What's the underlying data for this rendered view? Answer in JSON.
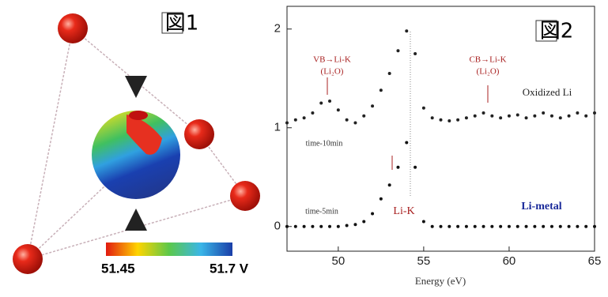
{
  "figure1": {
    "label": "図1",
    "colorbar_labels": [
      "51.45",
      "51.7 V"
    ]
  },
  "chart_data": {
    "type": "scatter",
    "label": "図2",
    "x_label": "Energy (eV)",
    "xlim": [
      47,
      65
    ],
    "xticks": [
      50,
      55,
      60,
      65
    ],
    "ylim": [
      -0.25,
      2.23
    ],
    "yticks": [
      0,
      1,
      2
    ],
    "annotations": [
      "VB→Li-K",
      "(Li₂O)",
      "CB→Li-K",
      "(Li₂O)",
      "Oxidized Li",
      "time-10min",
      "time-5min",
      "Li-K",
      "Li-metal"
    ],
    "x": [
      47,
      47.5,
      48,
      48.5,
      49,
      49.5,
      50,
      50.5,
      51,
      51.5,
      52,
      52.5,
      53,
      53.5,
      54,
      54.5,
      55,
      55.5,
      56,
      56.5,
      57,
      57.5,
      58,
      58.5,
      59,
      59.5,
      60,
      60.5,
      61,
      61.5,
      62,
      62.5,
      63,
      63.5,
      64,
      64.5,
      65
    ],
    "series": [
      {
        "name": "Oxidized Li",
        "color": "#222222",
        "values": [
          1.05,
          1.08,
          1.1,
          1.15,
          1.25,
          1.27,
          1.18,
          1.08,
          1.05,
          1.12,
          1.22,
          1.38,
          1.55,
          1.78,
          1.98,
          1.75,
          1.2,
          1.1,
          1.08,
          1.07,
          1.08,
          1.1,
          1.12,
          1.15,
          1.12,
          1.1,
          1.12,
          1.13,
          1.1,
          1.12,
          1.15,
          1.12,
          1.1,
          1.12,
          1.15,
          1.12,
          1.15
        ]
      },
      {
        "name": "Li-metal",
        "color": "#111111",
        "values": [
          0,
          0,
          0,
          0,
          0,
          0,
          0,
          0.01,
          0.02,
          0.05,
          0.13,
          0.28,
          0.42,
          0.6,
          0.85,
          0.6,
          0.05,
          0,
          0,
          0,
          0,
          0,
          0,
          0,
          0,
          0,
          0,
          0,
          0,
          0,
          0,
          0,
          0,
          0,
          0,
          0,
          0
        ]
      }
    ]
  }
}
